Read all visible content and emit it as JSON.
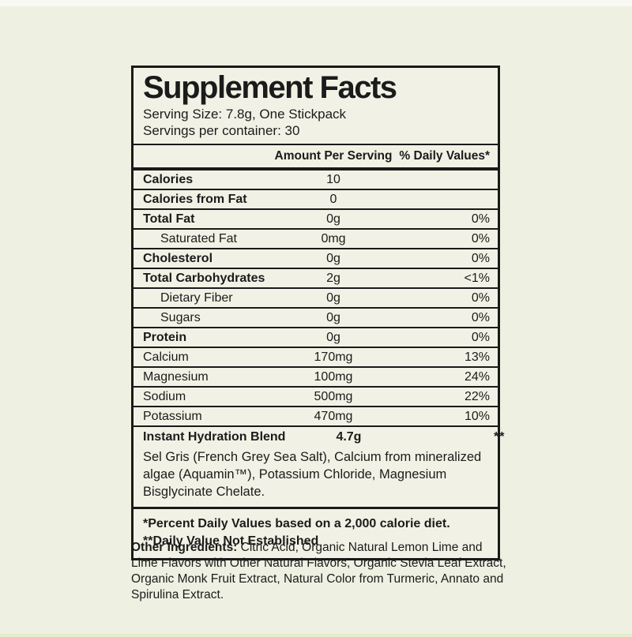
{
  "colors": {
    "page_background": "#eef0e2",
    "label_background": "#f1f2e5",
    "border": "#1a1a1a",
    "text": "#1b1b1b",
    "top_strip": "#f8f9f3",
    "bottom_strip": "#e6ecca"
  },
  "label": {
    "title": "Supplement Facts",
    "serving_size": "Serving Size: 7.8g, One Stickpack",
    "servings_per_container": "Servings per container: 30",
    "columns": {
      "amount": "Amount Per Serving",
      "daily_value": "% Daily Values*"
    },
    "rows": [
      {
        "name": "Calories",
        "amount": "10",
        "dv": "",
        "bold": true,
        "indent": false
      },
      {
        "name": "Calories from Fat",
        "amount": "0",
        "dv": "",
        "bold": true,
        "indent": false
      },
      {
        "name": "Total Fat",
        "amount": "0g",
        "dv": "0%",
        "bold": true,
        "indent": false
      },
      {
        "name": "Saturated Fat",
        "amount": "0mg",
        "dv": "0%",
        "bold": false,
        "indent": true
      },
      {
        "name": "Cholesterol",
        "amount": "0g",
        "dv": "0%",
        "bold": true,
        "indent": false
      },
      {
        "name": "Total Carbohydrates",
        "amount": "2g",
        "dv": "<1%",
        "bold": true,
        "indent": false
      },
      {
        "name": "Dietary Fiber",
        "amount": "0g",
        "dv": "0%",
        "bold": false,
        "indent": true
      },
      {
        "name": "Sugars",
        "amount": "0g",
        "dv": "0%",
        "bold": false,
        "indent": true
      },
      {
        "name": "Protein",
        "amount": "0g",
        "dv": "0%",
        "bold": true,
        "indent": false
      },
      {
        "name": "Calcium",
        "amount": "170mg",
        "dv": "13%",
        "bold": false,
        "indent": false
      },
      {
        "name": "Magnesium",
        "amount": "100mg",
        "dv": "24%",
        "bold": false,
        "indent": false
      },
      {
        "name": "Sodium",
        "amount": "500mg",
        "dv": "22%",
        "bold": false,
        "indent": false
      },
      {
        "name": "Potassium",
        "amount": "470mg",
        "dv": "10%",
        "bold": false,
        "indent": false
      }
    ],
    "blend": {
      "name": "Instant Hydration Blend",
      "amount": "4.7g",
      "dv": "**",
      "description": "Sel Gris (French Grey Sea Salt), Calcium from mineralized algae (Aquamin™), Potassium Chloride, Magnesium Bisglycinate Chelate."
    },
    "footnotes": [
      "*Percent Daily Values based on a 2,000 calorie diet.",
      "**Daily Value Not Established"
    ]
  },
  "other_ingredients": {
    "label": "Other Ingredients:",
    "text": " Citric Acid, Organic Natural Lemon Lime and Lime Flavors with Other Natural Flavors, Organic Stevia Leaf Extract, Organic Monk Fruit Extract, Natural Color from Turmeric, Annato and Spirulina Extract."
  }
}
